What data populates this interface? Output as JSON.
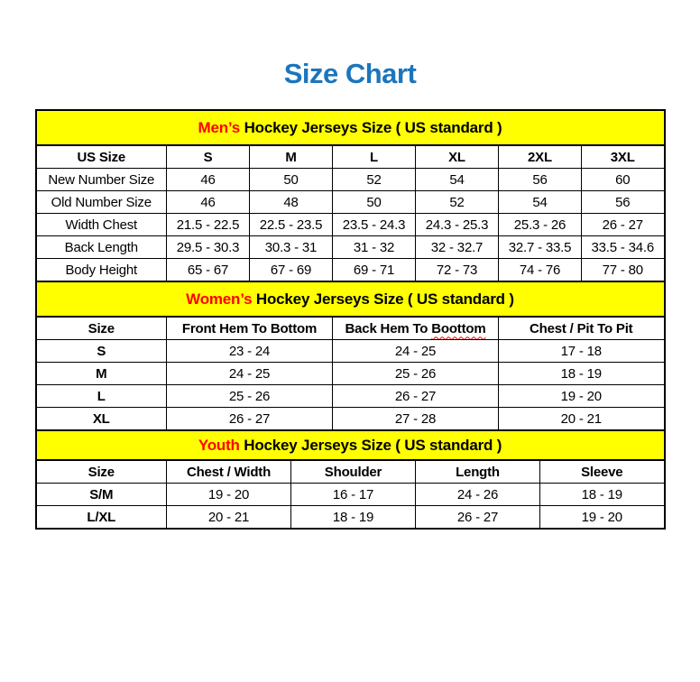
{
  "page": {
    "title": "Size Chart"
  },
  "colors": {
    "title_blue": "#1B75BC",
    "accent_red": "#FF0000",
    "band_yellow": "#FFFF00",
    "border_black": "#000000"
  },
  "mens": {
    "heading_highlight": "Men’s",
    "heading_rest": " Hockey Jerseys Size ( US standard )",
    "columns": [
      "US Size",
      "S",
      "M",
      "L",
      "XL",
      "2XL",
      "3XL"
    ],
    "rows": [
      {
        "label": "New Number Size",
        "values": [
          "46",
          "50",
          "52",
          "54",
          "56",
          "60"
        ]
      },
      {
        "label": "Old Number Size",
        "values": [
          "46",
          "48",
          "50",
          "52",
          "54",
          "56"
        ]
      },
      {
        "label": "Width Chest",
        "values": [
          "21.5 - 22.5",
          "22.5 - 23.5",
          "23.5 - 24.3",
          "24.3 - 25.3",
          "25.3 - 26",
          "26 - 27"
        ]
      },
      {
        "label": "Back Length",
        "values": [
          "29.5 - 30.3",
          "30.3 - 31",
          "31 - 32",
          "32 - 32.7",
          "32.7 - 33.5",
          "33.5 - 34.6"
        ]
      },
      {
        "label": "Body Height",
        "values": [
          "65 - 67",
          "67 - 69",
          "69 - 71",
          "72 - 73",
          "74 - 76",
          "77 - 80"
        ]
      }
    ]
  },
  "womens": {
    "heading_highlight": "Women’s",
    "heading_rest": " Hockey Jerseys Size ( US standard )",
    "columns": [
      "Size",
      "Front Hem To Bottom",
      "Back Hem To",
      "Chest / Pit To Pit"
    ],
    "misspelled_suffix": "Boottom",
    "rows": [
      {
        "label": "S",
        "values": [
          "23 - 24",
          "24 - 25",
          "17 - 18"
        ]
      },
      {
        "label": "M",
        "values": [
          "24 - 25",
          "25 - 26",
          "18 - 19"
        ]
      },
      {
        "label": "L",
        "values": [
          "25 - 26",
          "26 - 27",
          "19 - 20"
        ]
      },
      {
        "label": "XL",
        "values": [
          "26 - 27",
          "27 - 28",
          "20 - 21"
        ]
      }
    ]
  },
  "youth": {
    "heading_highlight": "Youth",
    "heading_rest": " Hockey Jerseys Size ( US standard )",
    "columns": [
      "Size",
      "Chest / Width",
      "Shoulder",
      "Length",
      "Sleeve"
    ],
    "rows": [
      {
        "label": "S/M",
        "values": [
          "19 - 20",
          "16 - 17",
          "24 - 26",
          "18 - 19"
        ]
      },
      {
        "label": "L/XL",
        "values": [
          "20 - 21",
          "18 - 19",
          "26 - 27",
          "19 - 20"
        ]
      }
    ]
  }
}
